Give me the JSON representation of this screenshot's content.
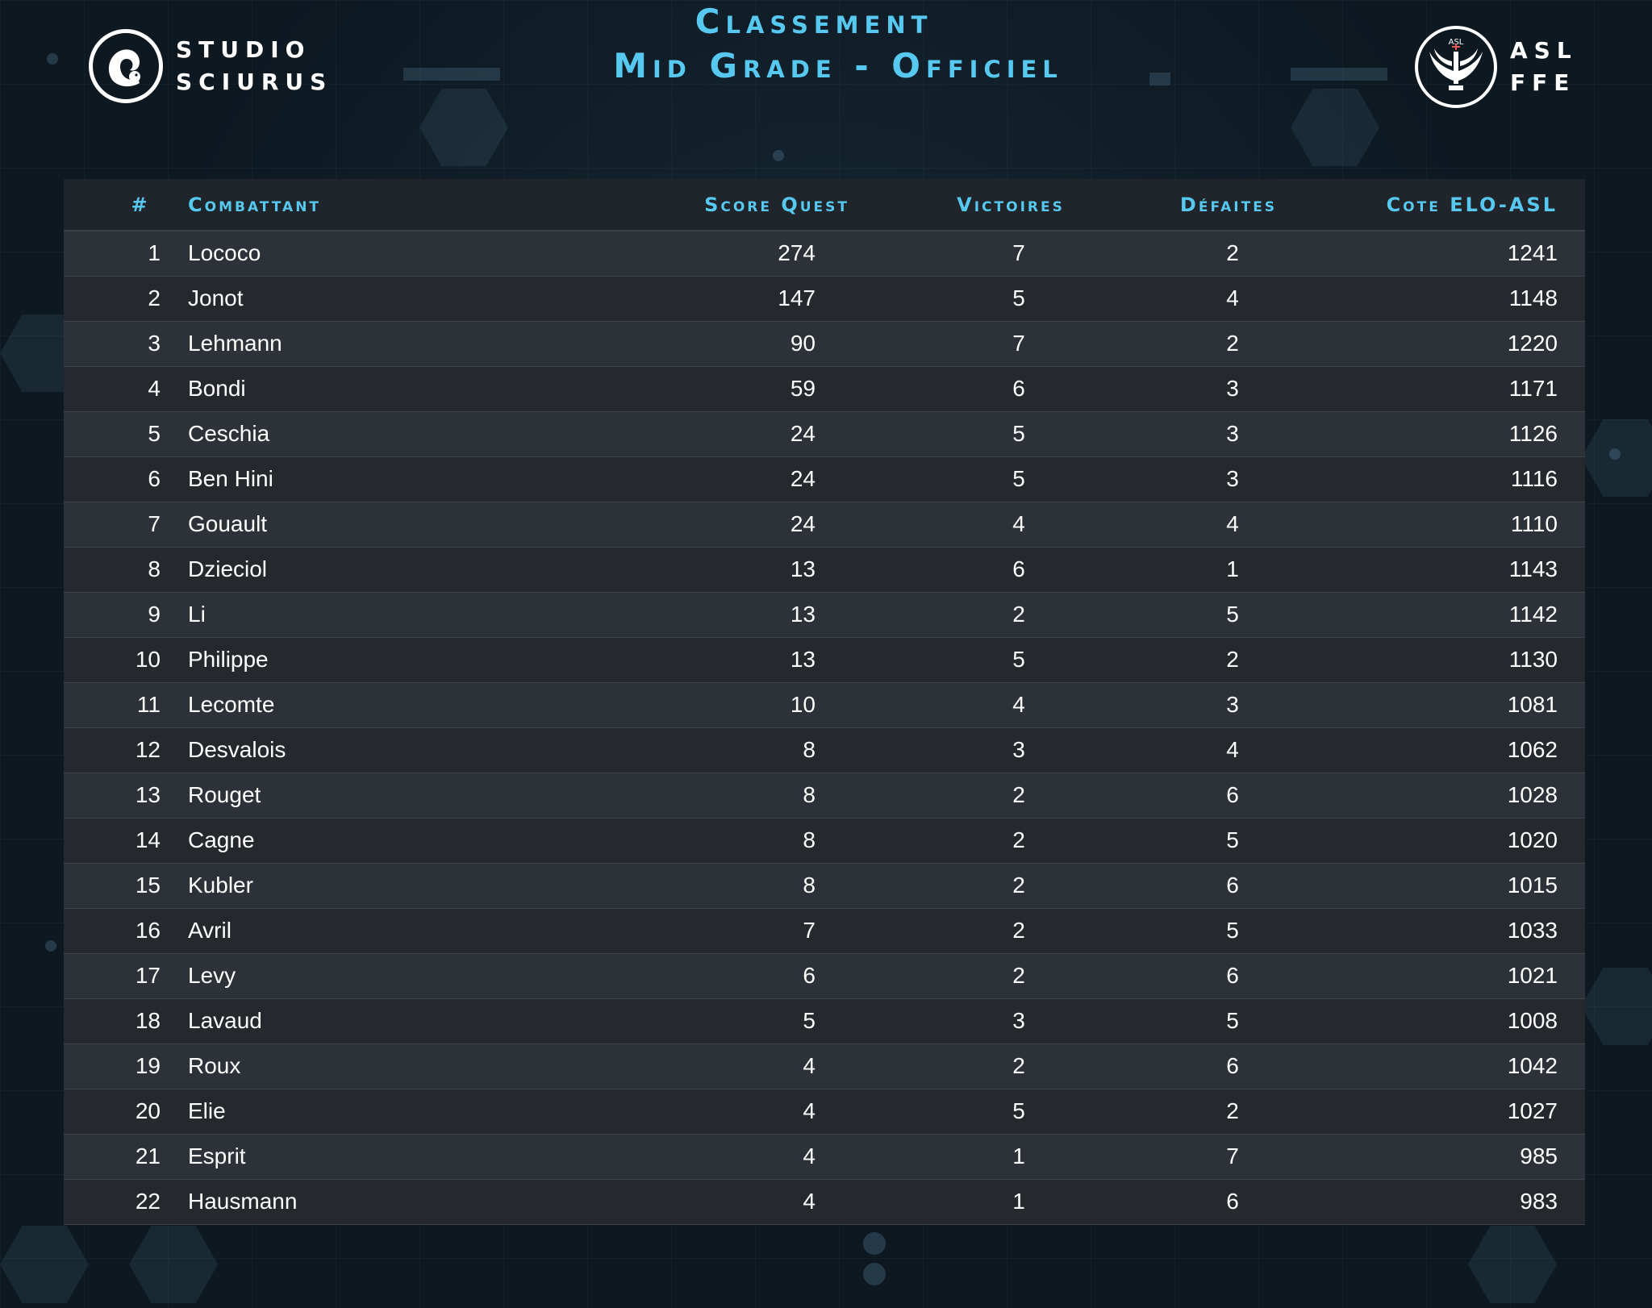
{
  "header": {
    "title_line1": "Classement",
    "title_line2": "Mid Grade - Officiel",
    "left_logo": {
      "line1": "STUDIO",
      "line2": "SCIURUS",
      "icon": "squirrel-icon"
    },
    "right_logo": {
      "line1": "ASL",
      "line2": "FFE",
      "icon": "lightsaber-wings-icon",
      "emblem_text": "ASL"
    }
  },
  "colors": {
    "accent": "#57c8ef",
    "background": "#0d1821",
    "row_odd": "#2d3238",
    "row_even": "#25292e",
    "text": "#ffffff"
  },
  "table": {
    "columns": [
      "#",
      "Combattant",
      "Score Quest",
      "Victoires",
      "Défaites",
      "Cote ELO-ASL"
    ],
    "rows": [
      [
        "1",
        "Lococo",
        "274",
        "7",
        "2",
        "1241"
      ],
      [
        "2",
        "Jonot",
        "147",
        "5",
        "4",
        "1148"
      ],
      [
        "3",
        "Lehmann",
        "90",
        "7",
        "2",
        "1220"
      ],
      [
        "4",
        "Bondi",
        "59",
        "6",
        "3",
        "1171"
      ],
      [
        "5",
        "Ceschia",
        "24",
        "5",
        "3",
        "1126"
      ],
      [
        "6",
        "Ben Hini",
        "24",
        "5",
        "3",
        "1116"
      ],
      [
        "7",
        "Gouault",
        "24",
        "4",
        "4",
        "1110"
      ],
      [
        "8",
        "Dzieciol",
        "13",
        "6",
        "1",
        "1143"
      ],
      [
        "9",
        "Li",
        "13",
        "2",
        "5",
        "1142"
      ],
      [
        "10",
        "Philippe",
        "13",
        "5",
        "2",
        "1130"
      ],
      [
        "11",
        "Lecomte",
        "10",
        "4",
        "3",
        "1081"
      ],
      [
        "12",
        "Desvalois",
        "8",
        "3",
        "4",
        "1062"
      ],
      [
        "13",
        "Rouget",
        "8",
        "2",
        "6",
        "1028"
      ],
      [
        "14",
        "Cagne",
        "8",
        "2",
        "5",
        "1020"
      ],
      [
        "15",
        "Kubler",
        "8",
        "2",
        "6",
        "1015"
      ],
      [
        "16",
        "Avril",
        "7",
        "2",
        "5",
        "1033"
      ],
      [
        "17",
        "Levy",
        "6",
        "2",
        "6",
        "1021"
      ],
      [
        "18",
        "Lavaud",
        "5",
        "3",
        "5",
        "1008"
      ],
      [
        "19",
        "Roux",
        "4",
        "2",
        "6",
        "1042"
      ],
      [
        "20",
        "Elie",
        "4",
        "5",
        "2",
        "1027"
      ],
      [
        "21",
        "Esprit",
        "4",
        "1",
        "7",
        "985"
      ],
      [
        "22",
        "Hausmann",
        "4",
        "1",
        "6",
        "983"
      ]
    ]
  }
}
